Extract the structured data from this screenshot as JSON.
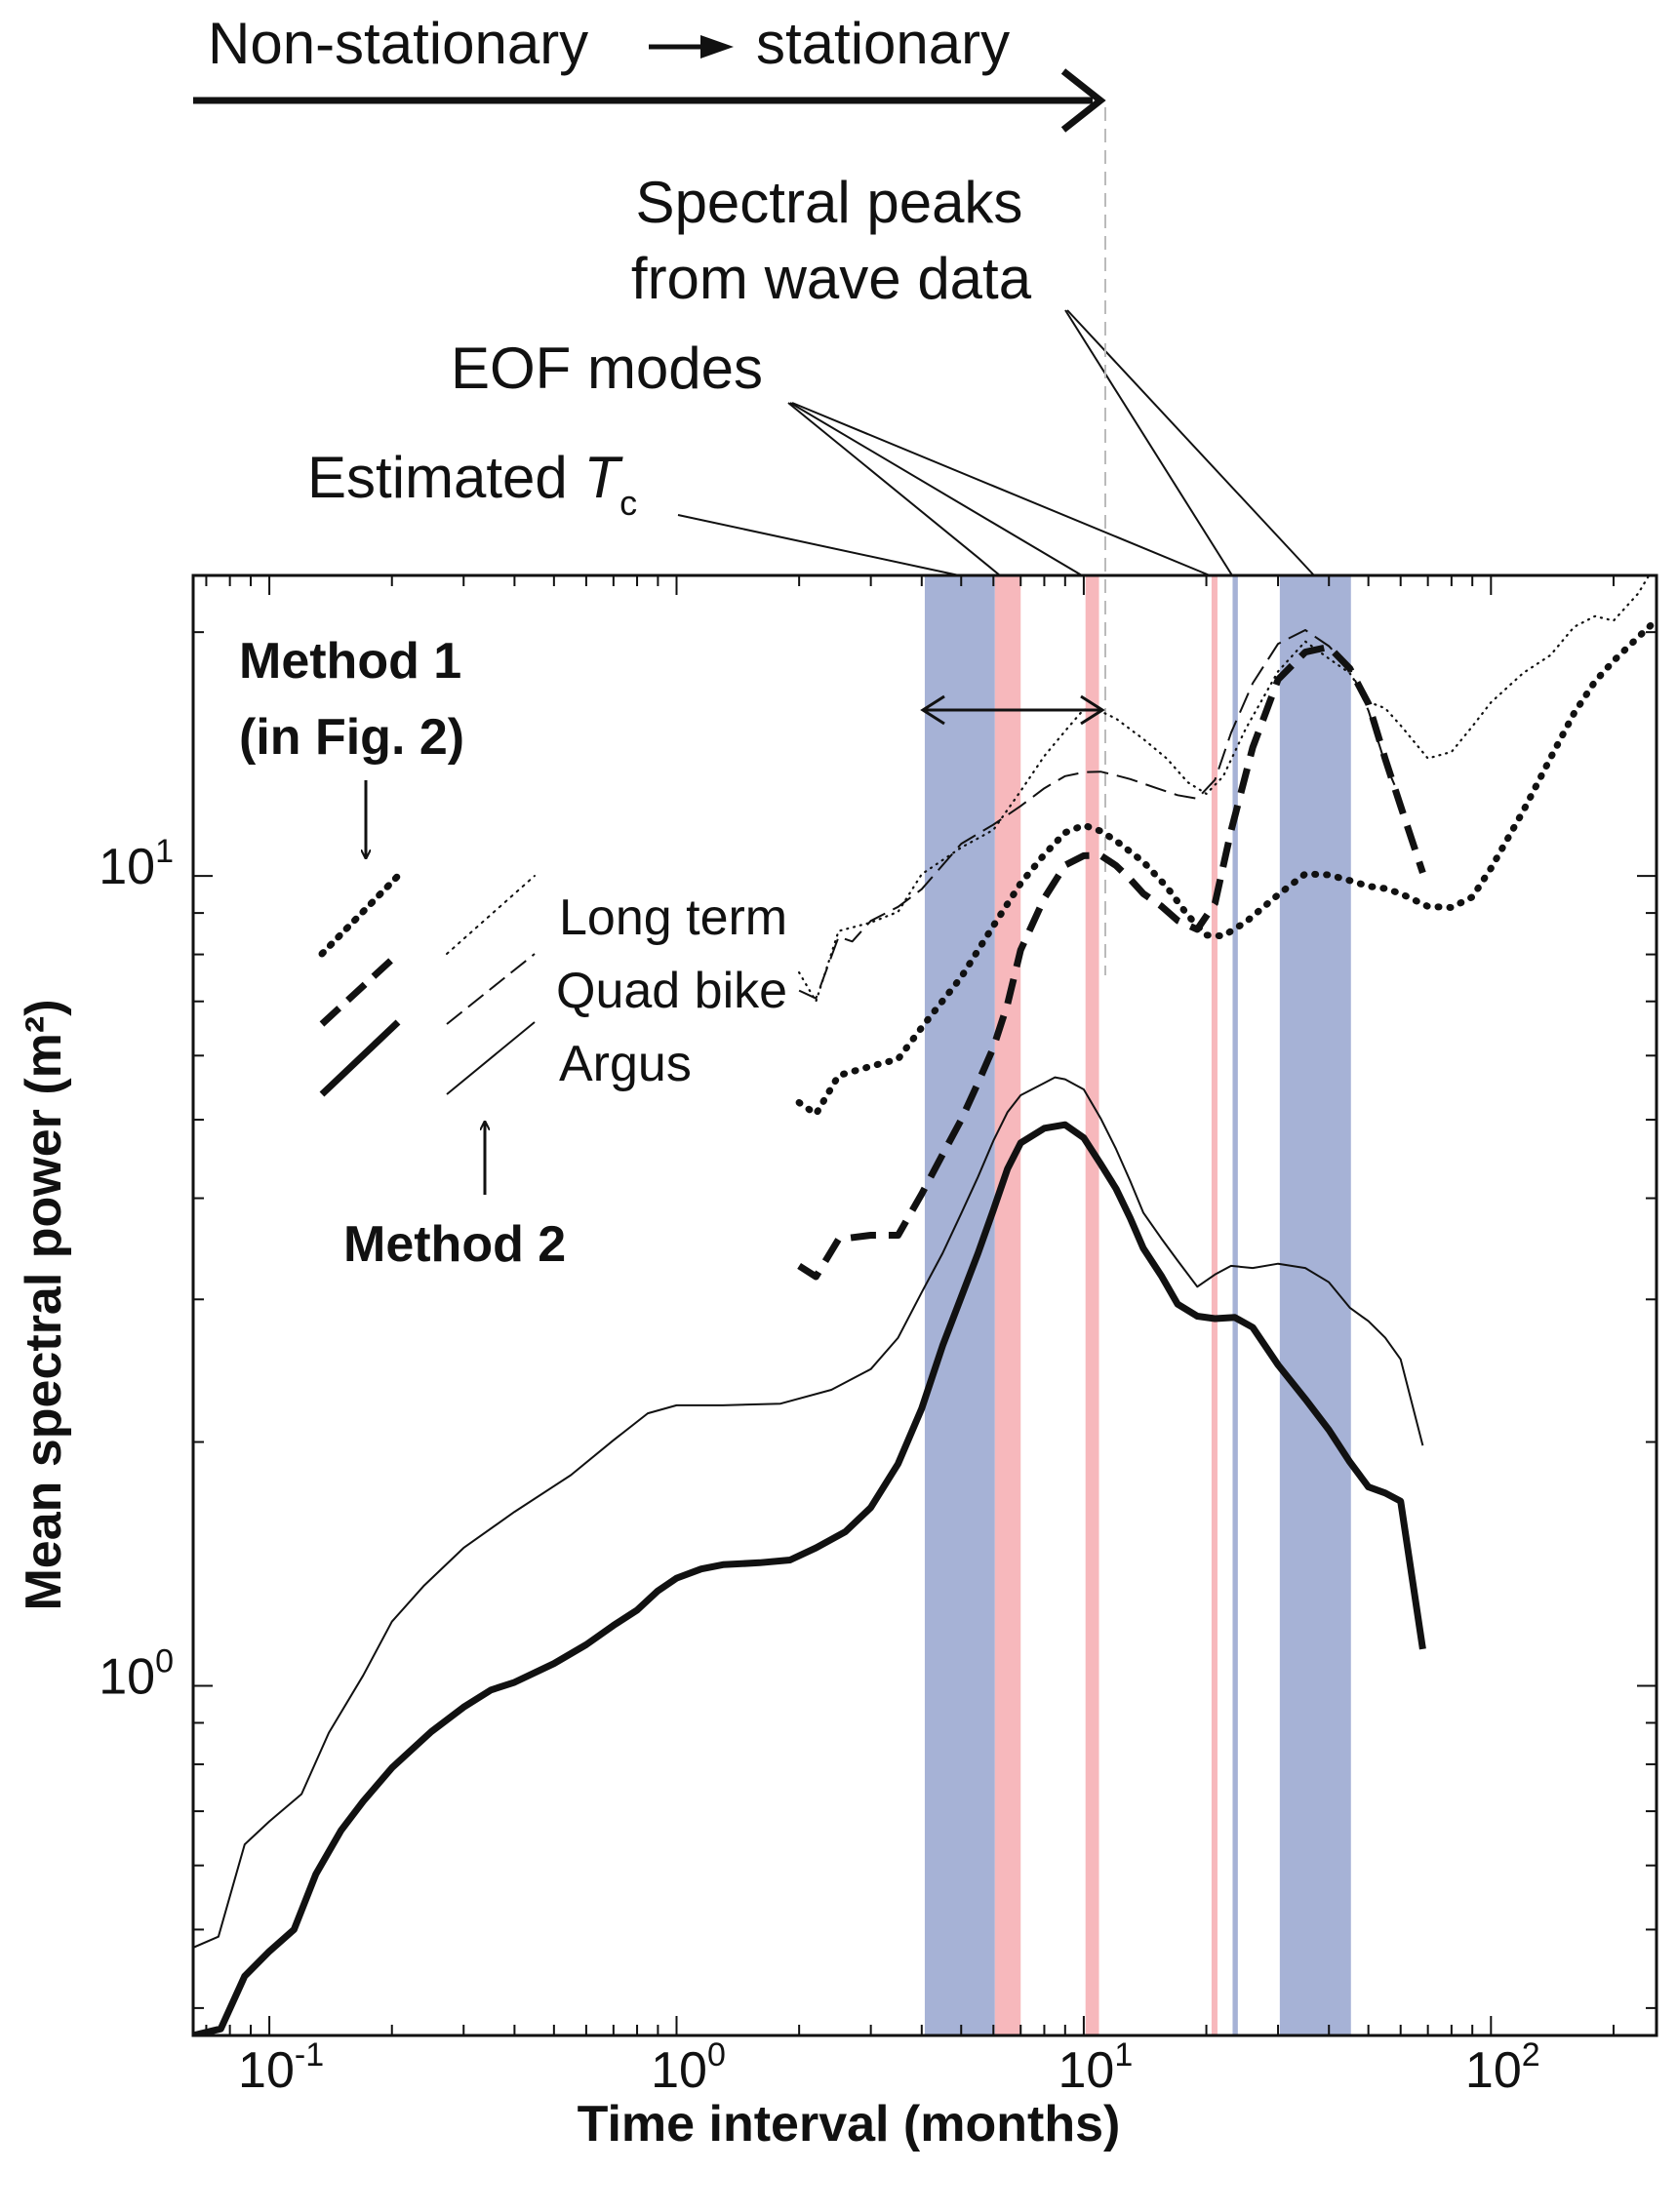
{
  "chart_data": {
    "type": "line",
    "xlabel": "Time interval (months)",
    "ylabel": "Mean spectral power (m²)",
    "x_scale": "log",
    "y_scale": "log",
    "xlim": [
      0.065,
      255
    ],
    "ylim": [
      0.37,
      23.5
    ],
    "x_ticks": [
      {
        "value": 0.1,
        "base": "10",
        "exp": "-1"
      },
      {
        "value": 1,
        "base": "10",
        "exp": "0"
      },
      {
        "value": 10,
        "base": "10",
        "exp": "1"
      },
      {
        "value": 100,
        "base": "10",
        "exp": "2"
      }
    ],
    "y_ticks": [
      {
        "value": 1,
        "base": "10",
        "exp": "0"
      },
      {
        "value": 10,
        "base": "10",
        "exp": "1"
      }
    ],
    "grid": false,
    "legend": {
      "method1_label": "Method 1",
      "method1_sub": "(in Fig. 2)",
      "method2_label": "Method 2",
      "entries": [
        "Long term",
        "Quad bike",
        "Argus"
      ]
    },
    "annotations": {
      "arrow_text_left": "Non-stationary",
      "arrow_text_right": "stationary",
      "spectral_peaks_line1": "Spectral peaks",
      "spectral_peaks_line2": "from wave data",
      "eof_modes": "EOF modes",
      "estimated_tc_prefix": "Estimated ",
      "estimated_tc_symbol": "T",
      "estimated_tc_subscript": "c"
    },
    "colors": {
      "blue_band": "#a6b2d6",
      "pink_band": "#f7b8bc",
      "line": "#111111"
    },
    "bands": [
      {
        "kind": "blue",
        "x0": 4.07,
        "x1": 6.05,
        "note": "estimated Tc range"
      },
      {
        "kind": "pink",
        "x0": 6.05,
        "x1": 7.0,
        "note": "EOF mode"
      },
      {
        "kind": "pink",
        "x0": 10.1,
        "x1": 10.9,
        "note": "EOF mode"
      },
      {
        "kind": "pink",
        "x0": 20.6,
        "x1": 21.3,
        "note": "EOF mode"
      },
      {
        "kind": "blue",
        "x0": 23.2,
        "x1": 23.9,
        "note": "spectral peak from wave data"
      },
      {
        "kind": "blue",
        "x0": 30.3,
        "x1": 45.3,
        "note": "spectral peak from wave data"
      }
    ],
    "series": [
      {
        "name": "Argus",
        "method": "Method 1",
        "style": "thick-solid",
        "points": [
          [
            0.065,
            0.37
          ],
          [
            0.076,
            0.377
          ],
          [
            0.087,
            0.438
          ],
          [
            0.1,
            0.47
          ],
          [
            0.115,
            0.5
          ],
          [
            0.13,
            0.585
          ],
          [
            0.15,
            0.663
          ],
          [
            0.17,
            0.72
          ],
          [
            0.2,
            0.792
          ],
          [
            0.25,
            0.878
          ],
          [
            0.3,
            0.941
          ],
          [
            0.35,
            0.988
          ],
          [
            0.4,
            1.01
          ],
          [
            0.5,
            1.065
          ],
          [
            0.6,
            1.124
          ],
          [
            0.7,
            1.187
          ],
          [
            0.8,
            1.24
          ],
          [
            0.9,
            1.31
          ],
          [
            1.0,
            1.358
          ],
          [
            1.15,
            1.394
          ],
          [
            1.3,
            1.411
          ],
          [
            1.6,
            1.419
          ],
          [
            1.9,
            1.43
          ],
          [
            2.2,
            1.48
          ],
          [
            2.6,
            1.55
          ],
          [
            3.0,
            1.66
          ],
          [
            3.5,
            1.88
          ],
          [
            4.0,
            2.2
          ],
          [
            4.5,
            2.63
          ],
          [
            5.0,
            3.02
          ],
          [
            5.5,
            3.42
          ],
          [
            6.0,
            3.87
          ],
          [
            6.5,
            4.35
          ],
          [
            7.0,
            4.68
          ],
          [
            8.0,
            4.88
          ],
          [
            9.0,
            4.93
          ],
          [
            10.0,
            4.75
          ],
          [
            11.0,
            4.41
          ],
          [
            12.0,
            4.11
          ],
          [
            13.0,
            3.78
          ],
          [
            14.0,
            3.47
          ],
          [
            15.5,
            3.21
          ],
          [
            17.0,
            2.96
          ],
          [
            19.0,
            2.86
          ],
          [
            21.0,
            2.84
          ],
          [
            23.5,
            2.85
          ],
          [
            26.0,
            2.77
          ],
          [
            30.0,
            2.49
          ],
          [
            35.0,
            2.26
          ],
          [
            40.0,
            2.07
          ],
          [
            45.0,
            1.89
          ],
          [
            50.0,
            1.76
          ],
          [
            55.0,
            1.73
          ],
          [
            60.0,
            1.69
          ],
          [
            68.0,
            1.11
          ]
        ]
      },
      {
        "name": "Argus",
        "method": "Method 2",
        "style": "thin-solid",
        "points": [
          [
            0.065,
            0.475
          ],
          [
            0.075,
            0.49
          ],
          [
            0.087,
            0.637
          ],
          [
            0.1,
            0.68
          ],
          [
            0.12,
            0.735
          ],
          [
            0.14,
            0.875
          ],
          [
            0.17,
            1.03
          ],
          [
            0.2,
            1.2
          ],
          [
            0.24,
            1.33
          ],
          [
            0.3,
            1.48
          ],
          [
            0.4,
            1.64
          ],
          [
            0.55,
            1.82
          ],
          [
            0.7,
            2.01
          ],
          [
            0.85,
            2.17
          ],
          [
            1.0,
            2.22
          ],
          [
            1.3,
            2.22
          ],
          [
            1.8,
            2.23
          ],
          [
            2.4,
            2.32
          ],
          [
            3.0,
            2.46
          ],
          [
            3.5,
            2.69
          ],
          [
            4.0,
            3.06
          ],
          [
            4.5,
            3.42
          ],
          [
            5.0,
            3.83
          ],
          [
            5.5,
            4.25
          ],
          [
            6.0,
            4.71
          ],
          [
            6.5,
            5.11
          ],
          [
            7.0,
            5.36
          ],
          [
            8.0,
            5.55
          ],
          [
            8.5,
            5.64
          ],
          [
            9.0,
            5.61
          ],
          [
            10.0,
            5.45
          ],
          [
            11.0,
            5.02
          ],
          [
            12.0,
            4.6
          ],
          [
            13.0,
            4.2
          ],
          [
            14.0,
            3.84
          ],
          [
            15.5,
            3.57
          ],
          [
            17.0,
            3.35
          ],
          [
            19.0,
            3.11
          ],
          [
            21.0,
            3.22
          ],
          [
            23.0,
            3.3
          ],
          [
            26.0,
            3.28
          ],
          [
            30.0,
            3.32
          ],
          [
            35.0,
            3.28
          ],
          [
            40.0,
            3.15
          ],
          [
            45.0,
            2.93
          ],
          [
            50.0,
            2.82
          ],
          [
            55.0,
            2.69
          ],
          [
            60.0,
            2.53
          ],
          [
            68.0,
            1.98
          ]
        ]
      },
      {
        "name": "Quad bike",
        "method": "Method 1",
        "style": "thick-dashed",
        "points": [
          [
            2.0,
            3.3
          ],
          [
            2.2,
            3.2
          ],
          [
            2.5,
            3.56
          ],
          [
            3.0,
            3.6
          ],
          [
            3.5,
            3.6
          ],
          [
            4.0,
            4.05
          ],
          [
            4.5,
            4.53
          ],
          [
            5.0,
            5.0
          ],
          [
            5.5,
            5.55
          ],
          [
            6.0,
            6.14
          ],
          [
            6.5,
            6.95
          ],
          [
            7.0,
            8.1
          ],
          [
            8.0,
            9.39
          ],
          [
            9.0,
            10.31
          ],
          [
            10.0,
            10.59
          ],
          [
            11.0,
            10.6
          ],
          [
            12.0,
            10.3
          ],
          [
            13.0,
            9.91
          ],
          [
            14.0,
            9.51
          ],
          [
            15.5,
            9.18
          ],
          [
            17.0,
            8.81
          ],
          [
            19.0,
            8.59
          ],
          [
            21.0,
            9.25
          ],
          [
            23.0,
            11.37
          ],
          [
            26.0,
            14.41
          ],
          [
            30.0,
            17.48
          ],
          [
            35.0,
            18.9
          ],
          [
            40.0,
            19.18
          ],
          [
            45.0,
            18.04
          ],
          [
            50.0,
            16.32
          ],
          [
            55.0,
            13.95
          ],
          [
            60.0,
            12.2
          ],
          [
            68.0,
            10.09
          ]
        ]
      },
      {
        "name": "Quad bike",
        "method": "Method 2",
        "style": "thin-dashed",
        "points": [
          [
            2.0,
            7.22
          ],
          [
            2.2,
            7.06
          ],
          [
            2.5,
            8.41
          ],
          [
            2.7,
            8.3
          ],
          [
            3.0,
            8.8
          ],
          [
            3.5,
            9.16
          ],
          [
            4.0,
            9.63
          ],
          [
            5.0,
            10.96
          ],
          [
            6.0,
            11.57
          ],
          [
            7.0,
            12.2
          ],
          [
            8.0,
            12.83
          ],
          [
            9.0,
            13.28
          ],
          [
            10.0,
            13.43
          ],
          [
            11.0,
            13.45
          ],
          [
            12.0,
            13.31
          ],
          [
            13.0,
            13.17
          ],
          [
            15.0,
            12.85
          ],
          [
            17.0,
            12.58
          ],
          [
            19.0,
            12.46
          ],
          [
            21.0,
            13.14
          ],
          [
            23.0,
            15.02
          ],
          [
            26.0,
            17.3
          ],
          [
            30.0,
            19.35
          ],
          [
            35.0,
            20.12
          ],
          [
            40.0,
            19.22
          ],
          [
            45.0,
            18.05
          ],
          [
            50.0,
            16.0
          ],
          [
            55.0,
            13.77
          ],
          [
            60.0,
            12.45
          ]
        ]
      },
      {
        "name": "Long term",
        "method": "Method 1",
        "style": "thick-dotted",
        "points": [
          [
            2.0,
            5.25
          ],
          [
            2.2,
            5.08
          ],
          [
            2.5,
            5.67
          ],
          [
            3.0,
            5.82
          ],
          [
            3.5,
            5.94
          ],
          [
            4.0,
            6.5
          ],
          [
            5.0,
            7.5
          ],
          [
            6.0,
            8.68
          ],
          [
            7.0,
            9.79
          ],
          [
            8.0,
            10.63
          ],
          [
            9.0,
            11.31
          ],
          [
            10.0,
            11.55
          ],
          [
            11.0,
            11.36
          ],
          [
            12.0,
            11.05
          ],
          [
            14.0,
            10.41
          ],
          [
            16.0,
            9.69
          ],
          [
            18.0,
            8.94
          ],
          [
            20.0,
            8.45
          ],
          [
            22.0,
            8.43
          ],
          [
            25.0,
            8.77
          ],
          [
            30.0,
            9.48
          ],
          [
            35.0,
            10.06
          ],
          [
            40.0,
            10.03
          ],
          [
            45.0,
            9.87
          ],
          [
            50.0,
            9.71
          ],
          [
            55.0,
            9.65
          ],
          [
            60.0,
            9.51
          ],
          [
            70.0,
            9.17
          ],
          [
            80.0,
            9.14
          ],
          [
            90.0,
            9.42
          ],
          [
            100.0,
            10.22
          ],
          [
            120.0,
            12.03
          ],
          [
            140.0,
            13.98
          ],
          [
            160.0,
            15.88
          ],
          [
            180.0,
            17.38
          ],
          [
            200.0,
            18.43
          ],
          [
            230.0,
            19.72
          ],
          [
            255.0,
            20.7
          ]
        ]
      },
      {
        "name": "Long term",
        "method": "Method 2",
        "style": "thin-dotted",
        "points": [
          [
            2.0,
            7.6
          ],
          [
            2.2,
            7.0
          ],
          [
            2.5,
            8.55
          ],
          [
            3.0,
            8.76
          ],
          [
            3.5,
            9.03
          ],
          [
            4.0,
            10.05
          ],
          [
            5.0,
            10.84
          ],
          [
            6.0,
            11.4
          ],
          [
            7.0,
            12.73
          ],
          [
            8.0,
            14.06
          ],
          [
            9.0,
            15.1
          ],
          [
            10.0,
            16.06
          ],
          [
            11.0,
            15.97
          ],
          [
            12.0,
            15.64
          ],
          [
            14.0,
            14.76
          ],
          [
            16.0,
            13.96
          ],
          [
            18.0,
            13.05
          ],
          [
            20.0,
            12.63
          ],
          [
            22.0,
            13.27
          ],
          [
            25.0,
            15.2
          ],
          [
            30.0,
            17.89
          ],
          [
            35.0,
            19.48
          ],
          [
            40.0,
            18.55
          ],
          [
            45.0,
            17.8
          ],
          [
            50.0,
            16.4
          ],
          [
            55.0,
            16.11
          ],
          [
            60.0,
            15.34
          ],
          [
            70.0,
            13.97
          ],
          [
            80.0,
            14.23
          ],
          [
            90.0,
            15.3
          ],
          [
            100.0,
            16.38
          ],
          [
            120.0,
            17.81
          ],
          [
            140.0,
            18.73
          ],
          [
            160.0,
            20.3
          ],
          [
            180.0,
            20.93
          ],
          [
            200.0,
            20.66
          ],
          [
            230.0,
            22.33
          ],
          [
            255.0,
            24.36
          ]
        ]
      }
    ]
  }
}
